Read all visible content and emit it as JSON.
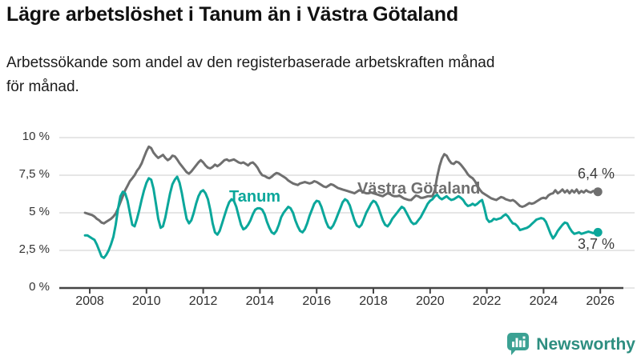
{
  "header": {
    "title": "Lägre arbetslöshet i Tanum än i Västra Götaland",
    "subtitle_line1": "Arbetssökande som andel av den registerbaserade arbetskraften månad",
    "subtitle_line2": "för månad."
  },
  "chart": {
    "colors": {
      "grid": "#dedede",
      "axis": "#444444",
      "tanum": "#0ba79b",
      "vastra_gotaland": "#6f6f6f",
      "end_label_text": "#3c3c3c"
    }
  },
  "chart_data": {
    "type": "line",
    "title": "Lägre arbetslöshet i Tanum än i Västra Götaland",
    "xlabel": "",
    "ylabel": "",
    "ylim": [
      0,
      10
    ],
    "grid": "horizontal",
    "legend_position": "inline-labels",
    "x_start_year": 2007.8333,
    "x_step_years": 0.0833333,
    "yticks": [
      {
        "value": 10,
        "label": "10 %"
      },
      {
        "value": 7.5,
        "label": "7,5 %"
      },
      {
        "value": 5,
        "label": "5 %"
      },
      {
        "value": 2.5,
        "label": "2,5 %"
      },
      {
        "value": 0,
        "label": "0 %"
      }
    ],
    "xticks": [
      {
        "value": 2008,
        "label": "2008"
      },
      {
        "value": 2010,
        "label": "2010"
      },
      {
        "value": 2012,
        "label": "2012"
      },
      {
        "value": 2014,
        "label": "2014"
      },
      {
        "value": 2016,
        "label": "2016"
      },
      {
        "value": 2018,
        "label": "2018"
      },
      {
        "value": 2020,
        "label": "2020"
      },
      {
        "value": 2022,
        "label": "2022"
      },
      {
        "value": 2024,
        "label": "2024"
      },
      {
        "value": 2026,
        "label": "2026"
      }
    ],
    "series": [
      {
        "name": "Västra Götaland",
        "slug": "vastra-gotaland",
        "color": "#6f6f6f",
        "end_label": "6,4 %",
        "values": [
          5.0,
          4.95,
          4.9,
          4.85,
          4.75,
          4.6,
          4.5,
          4.35,
          4.3,
          4.4,
          4.5,
          4.6,
          4.75,
          4.95,
          5.3,
          5.7,
          6.1,
          6.5,
          6.8,
          7.1,
          7.3,
          7.5,
          7.8,
          8.0,
          8.3,
          8.7,
          9.1,
          9.4,
          9.3,
          9.0,
          8.8,
          8.65,
          8.75,
          8.85,
          8.65,
          8.5,
          8.6,
          8.8,
          8.75,
          8.55,
          8.3,
          8.1,
          7.9,
          7.7,
          7.6,
          7.75,
          7.95,
          8.15,
          8.35,
          8.5,
          8.35,
          8.15,
          8.0,
          7.95,
          8.05,
          8.2,
          8.1,
          8.2,
          8.35,
          8.5,
          8.55,
          8.45,
          8.5,
          8.55,
          8.45,
          8.35,
          8.3,
          8.35,
          8.25,
          8.15,
          8.3,
          8.35,
          8.2,
          8.0,
          7.7,
          7.5,
          7.45,
          7.35,
          7.3,
          7.4,
          7.55,
          7.65,
          7.6,
          7.5,
          7.4,
          7.3,
          7.15,
          7.05,
          6.95,
          6.9,
          6.85,
          6.95,
          7.0,
          7.05,
          7.0,
          6.95,
          7.0,
          7.1,
          7.05,
          6.95,
          6.85,
          6.75,
          6.7,
          6.8,
          6.9,
          6.85,
          6.75,
          6.65,
          6.6,
          6.55,
          6.5,
          6.45,
          6.4,
          6.35,
          6.3,
          6.4,
          6.5,
          6.45,
          6.35,
          6.3,
          6.3,
          6.35,
          6.3,
          6.25,
          6.2,
          6.15,
          6.1,
          6.2,
          6.3,
          6.25,
          6.15,
          6.1,
          6.1,
          6.15,
          6.05,
          5.95,
          5.9,
          5.85,
          5.85,
          6.0,
          6.15,
          6.1,
          6.0,
          6.0,
          6.05,
          6.1,
          6.1,
          6.1,
          6.5,
          7.4,
          8.1,
          8.6,
          8.9,
          8.8,
          8.5,
          8.3,
          8.25,
          8.4,
          8.35,
          8.2,
          8.0,
          7.8,
          7.55,
          7.4,
          7.3,
          7.1,
          6.8,
          6.55,
          6.35,
          6.25,
          6.15,
          6.05,
          5.95,
          5.9,
          5.85,
          5.95,
          6.05,
          6.0,
          5.9,
          5.85,
          5.8,
          5.85,
          5.75,
          5.6,
          5.45,
          5.4,
          5.45,
          5.55,
          5.65,
          5.6,
          5.65,
          5.75,
          5.85,
          5.95,
          6.0,
          5.95,
          6.15,
          6.25,
          6.3,
          6.5,
          6.3,
          6.4,
          6.55,
          6.35,
          6.5,
          6.3,
          6.5,
          6.35,
          6.55,
          6.3,
          6.45,
          6.35,
          6.5,
          6.4,
          6.35,
          6.45,
          6.4,
          6.4
        ]
      },
      {
        "name": "Tanum",
        "slug": "tanum",
        "color": "#0ba79b",
        "end_label": "3,7 %",
        "values": [
          3.5,
          3.5,
          3.4,
          3.3,
          3.2,
          2.9,
          2.5,
          2.1,
          2.0,
          2.2,
          2.5,
          2.9,
          3.4,
          4.2,
          5.3,
          6.1,
          6.4,
          6.3,
          5.8,
          5.0,
          4.2,
          4.1,
          4.6,
          5.2,
          5.9,
          6.5,
          7.0,
          7.3,
          7.2,
          6.6,
          5.6,
          4.6,
          4.0,
          4.1,
          4.7,
          5.5,
          6.3,
          6.9,
          7.2,
          7.4,
          7.0,
          6.3,
          5.4,
          4.6,
          4.3,
          4.5,
          5.0,
          5.6,
          6.1,
          6.4,
          6.5,
          6.3,
          5.9,
          5.2,
          4.3,
          3.7,
          3.55,
          3.8,
          4.3,
          4.8,
          5.3,
          5.7,
          5.9,
          5.8,
          5.4,
          4.8,
          4.2,
          3.9,
          4.0,
          4.2,
          4.5,
          4.9,
          5.2,
          5.3,
          5.3,
          5.2,
          4.9,
          4.4,
          4.0,
          3.7,
          3.6,
          3.8,
          4.2,
          4.7,
          5.0,
          5.2,
          5.4,
          5.3,
          5.0,
          4.5,
          4.1,
          3.8,
          3.7,
          3.9,
          4.3,
          4.8,
          5.2,
          5.6,
          5.8,
          5.75,
          5.4,
          4.9,
          4.4,
          4.05,
          3.95,
          4.15,
          4.5,
          4.9,
          5.3,
          5.7,
          5.9,
          5.8,
          5.5,
          5.0,
          4.5,
          4.15,
          4.05,
          4.2,
          4.6,
          5.0,
          5.3,
          5.6,
          5.8,
          5.7,
          5.4,
          4.95,
          4.5,
          4.2,
          4.1,
          4.3,
          4.6,
          4.8,
          5.0,
          5.2,
          5.4,
          5.3,
          5.0,
          4.7,
          4.4,
          4.25,
          4.3,
          4.5,
          4.7,
          5.0,
          5.3,
          5.6,
          5.8,
          5.9,
          6.1,
          6.2,
          6.0,
          5.9,
          6.0,
          6.1,
          5.95,
          5.85,
          5.9,
          6.0,
          6.1,
          6.0,
          5.85,
          5.6,
          5.45,
          5.5,
          5.6,
          5.5,
          5.6,
          5.75,
          5.85,
          5.3,
          4.6,
          4.4,
          4.45,
          4.6,
          4.55,
          4.6,
          4.65,
          4.8,
          4.9,
          4.75,
          4.5,
          4.3,
          4.25,
          4.1,
          3.85,
          3.9,
          3.95,
          4.0,
          4.1,
          4.25,
          4.4,
          4.55,
          4.6,
          4.65,
          4.6,
          4.4,
          4.0,
          3.6,
          3.3,
          3.5,
          3.8,
          4.0,
          4.2,
          4.35,
          4.3,
          4.0,
          3.75,
          3.6,
          3.65,
          3.7,
          3.6,
          3.65,
          3.7,
          3.75,
          3.7,
          3.65,
          3.7,
          3.7
        ]
      }
    ]
  },
  "footer": {
    "brand": "Newsworthy",
    "brand_icon": "newsworthy-chart-bubble-icon",
    "icon_color": "#3ba193",
    "icon_bar_color": "#ffffff",
    "text_color": "#2d8e80"
  }
}
